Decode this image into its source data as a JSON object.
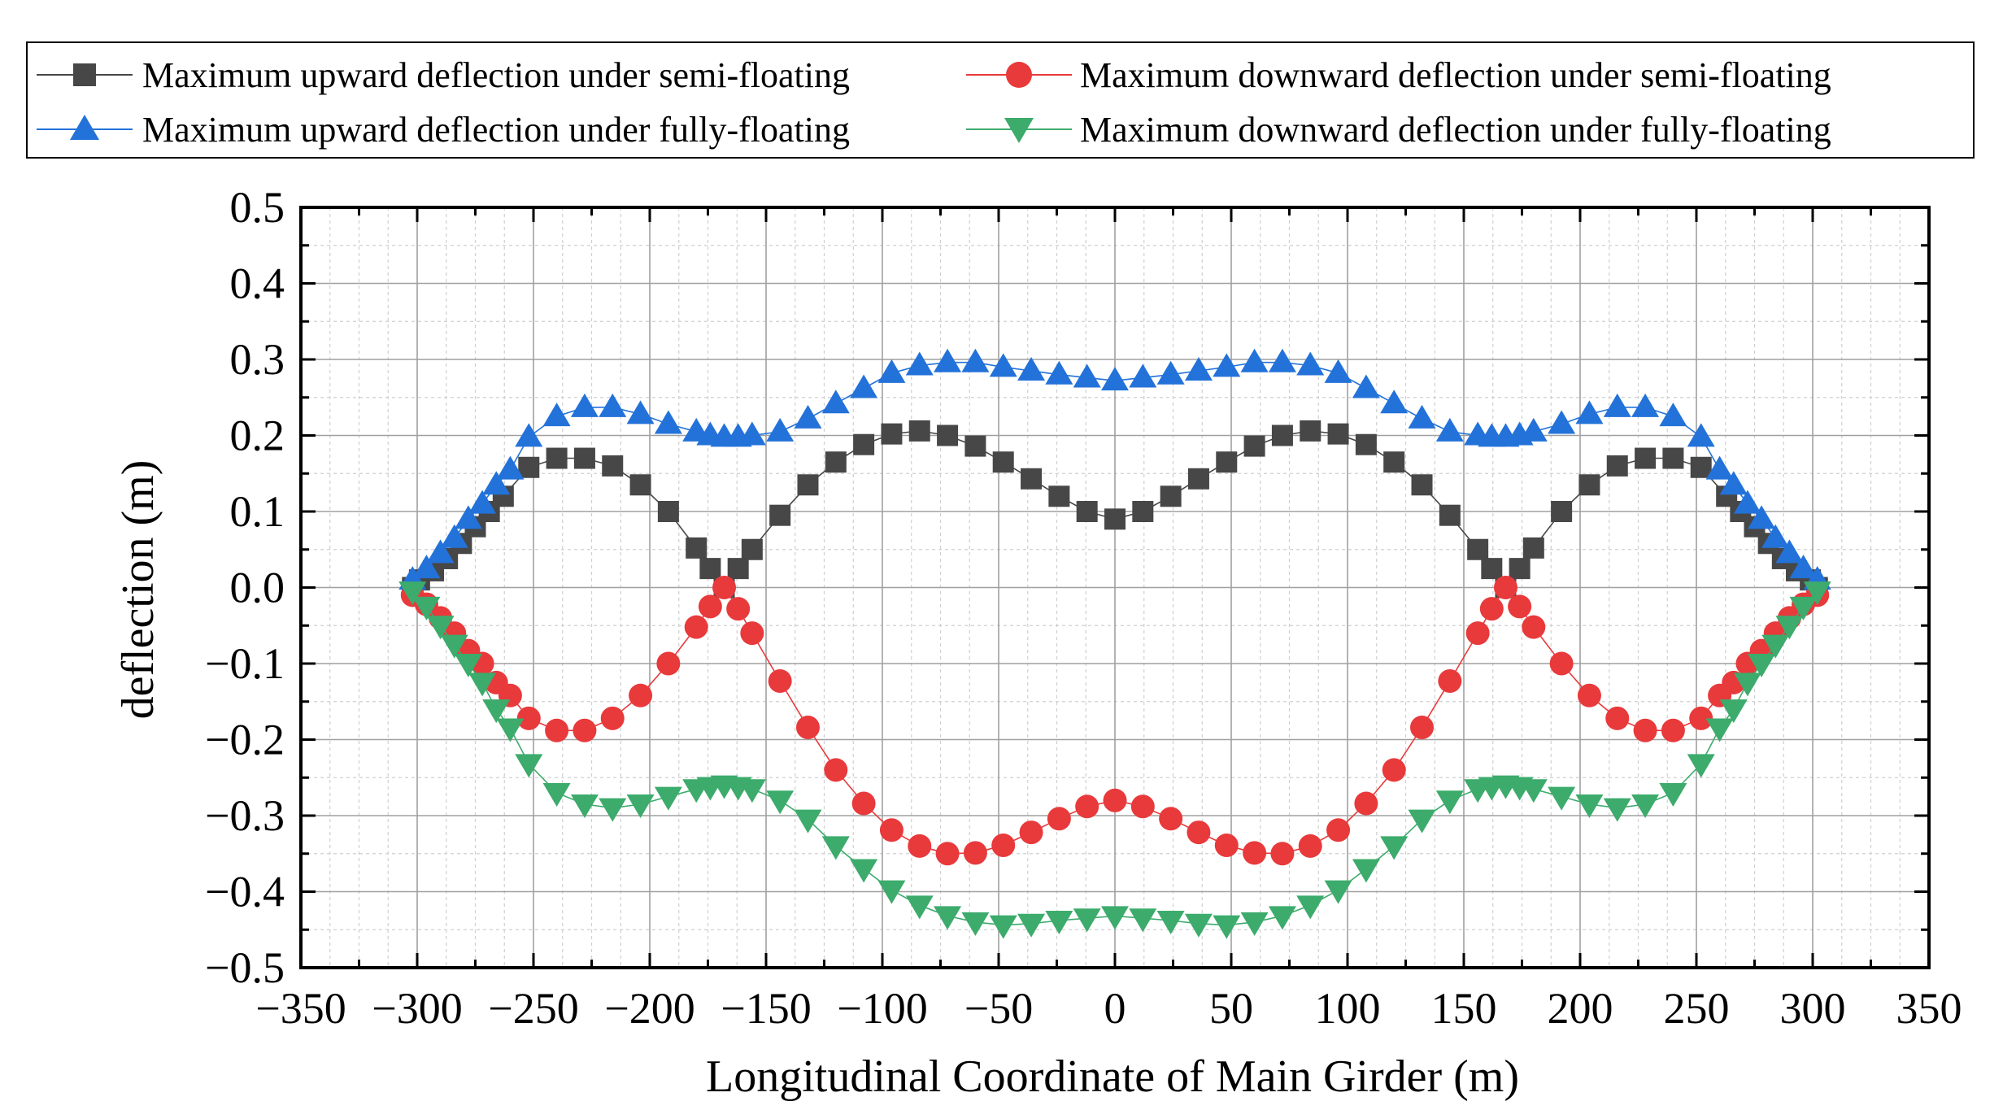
{
  "chart_data": {
    "type": "scatter",
    "xlabel": "Longitudinal Coordinate of Main Girder (m)",
    "ylabel": "deflection (m)",
    "xlim": [
      -350,
      350
    ],
    "ylim": [
      -0.5,
      0.5
    ],
    "xticks": [
      -350,
      -300,
      -250,
      -200,
      -150,
      -100,
      -50,
      0,
      50,
      100,
      150,
      200,
      250,
      300,
      350
    ],
    "yticks": [
      0.5,
      0.4,
      0.3,
      0.2,
      0.1,
      0.0,
      -0.1,
      -0.2,
      -0.3,
      -0.4,
      -0.5
    ],
    "xtick_labels": [
      "−350",
      "−300",
      "−250",
      "−200",
      "−150",
      "−100",
      "−50",
      "0",
      "50",
      "100",
      "150",
      "200",
      "250",
      "300",
      "350"
    ],
    "ytick_labels": [
      "0.5",
      "0.4",
      "0.3",
      "0.2",
      "0.1",
      "0.0",
      "−0.1",
      "−0.2",
      "−0.3",
      "−0.4",
      "−0.5"
    ],
    "grid": true,
    "legend_position": "top",
    "series": [
      {
        "name": "Maximum upward deflection under semi-floating",
        "color": "#474747",
        "marker": "square",
        "points": [
          [
            -302,
            0.0
          ],
          [
            -299,
            0.01
          ],
          [
            -293,
            0.022
          ],
          [
            -287,
            0.038
          ],
          [
            -281,
            0.058
          ],
          [
            -275,
            0.08
          ],
          [
            -269,
            0.1
          ],
          [
            -263,
            0.12
          ],
          [
            -252,
            0.158
          ],
          [
            -240,
            0.17
          ],
          [
            -228,
            0.17
          ],
          [
            -216,
            0.16
          ],
          [
            -204,
            0.135
          ],
          [
            -192,
            0.1
          ],
          [
            -180,
            0.052
          ],
          [
            -174,
            0.025
          ],
          [
            -168,
            0.0
          ],
          [
            -162,
            0.025
          ],
          [
            -156,
            0.05
          ],
          [
            -144,
            0.095
          ],
          [
            -132,
            0.135
          ],
          [
            -120,
            0.165
          ],
          [
            -108,
            0.188
          ],
          [
            -96,
            0.202
          ],
          [
            -84,
            0.206
          ],
          [
            -72,
            0.2
          ],
          [
            -60,
            0.186
          ],
          [
            -48,
            0.165
          ],
          [
            -36,
            0.143
          ],
          [
            -24,
            0.12
          ],
          [
            -12,
            0.1
          ],
          [
            0,
            0.09
          ],
          [
            12,
            0.1
          ],
          [
            24,
            0.12
          ],
          [
            36,
            0.143
          ],
          [
            48,
            0.165
          ],
          [
            60,
            0.186
          ],
          [
            72,
            0.2
          ],
          [
            84,
            0.206
          ],
          [
            96,
            0.202
          ],
          [
            108,
            0.188
          ],
          [
            120,
            0.165
          ],
          [
            132,
            0.135
          ],
          [
            144,
            0.095
          ],
          [
            156,
            0.05
          ],
          [
            162,
            0.025
          ],
          [
            168,
            0.0
          ],
          [
            174,
            0.025
          ],
          [
            180,
            0.052
          ],
          [
            192,
            0.1
          ],
          [
            204,
            0.135
          ],
          [
            216,
            0.16
          ],
          [
            228,
            0.17
          ],
          [
            240,
            0.17
          ],
          [
            252,
            0.158
          ],
          [
            263,
            0.12
          ],
          [
            269,
            0.1
          ],
          [
            275,
            0.08
          ],
          [
            281,
            0.058
          ],
          [
            287,
            0.038
          ],
          [
            293,
            0.022
          ],
          [
            299,
            0.01
          ],
          [
            302,
            0.0
          ]
        ]
      },
      {
        "name": "Maximum downward deflection under semi-floating",
        "color": "#e8393b",
        "marker": "circle",
        "points": [
          [
            -302,
            -0.01
          ],
          [
            -296,
            -0.022
          ],
          [
            -290,
            -0.04
          ],
          [
            -284,
            -0.06
          ],
          [
            -278,
            -0.083
          ],
          [
            -272,
            -0.1
          ],
          [
            -266,
            -0.125
          ],
          [
            -260,
            -0.142
          ],
          [
            -252,
            -0.172
          ],
          [
            -240,
            -0.188
          ],
          [
            -228,
            -0.188
          ],
          [
            -216,
            -0.172
          ],
          [
            -204,
            -0.142
          ],
          [
            -192,
            -0.1
          ],
          [
            -180,
            -0.052
          ],
          [
            -174,
            -0.025
          ],
          [
            -168,
            0.0
          ],
          [
            -162,
            -0.028
          ],
          [
            -156,
            -0.06
          ],
          [
            -144,
            -0.123
          ],
          [
            -132,
            -0.184
          ],
          [
            -120,
            -0.24
          ],
          [
            -108,
            -0.284
          ],
          [
            -96,
            -0.319
          ],
          [
            -84,
            -0.34
          ],
          [
            -72,
            -0.35
          ],
          [
            -60,
            -0.349
          ],
          [
            -48,
            -0.339
          ],
          [
            -36,
            -0.322
          ],
          [
            -24,
            -0.304
          ],
          [
            -12,
            -0.288
          ],
          [
            0,
            -0.28
          ],
          [
            12,
            -0.288
          ],
          [
            24,
            -0.304
          ],
          [
            36,
            -0.322
          ],
          [
            48,
            -0.339
          ],
          [
            60,
            -0.349
          ],
          [
            72,
            -0.35
          ],
          [
            84,
            -0.34
          ],
          [
            96,
            -0.319
          ],
          [
            108,
            -0.284
          ],
          [
            120,
            -0.24
          ],
          [
            132,
            -0.184
          ],
          [
            144,
            -0.123
          ],
          [
            156,
            -0.06
          ],
          [
            162,
            -0.028
          ],
          [
            168,
            0.0
          ],
          [
            174,
            -0.025
          ],
          [
            180,
            -0.052
          ],
          [
            192,
            -0.1
          ],
          [
            204,
            -0.142
          ],
          [
            216,
            -0.172
          ],
          [
            228,
            -0.188
          ],
          [
            240,
            -0.188
          ],
          [
            252,
            -0.172
          ],
          [
            260,
            -0.142
          ],
          [
            266,
            -0.125
          ],
          [
            272,
            -0.1
          ],
          [
            278,
            -0.083
          ],
          [
            284,
            -0.06
          ],
          [
            290,
            -0.04
          ],
          [
            296,
            -0.022
          ],
          [
            302,
            -0.01
          ]
        ]
      },
      {
        "name": "Maximum upward deflection under fully-floating",
        "color": "#2372d9",
        "marker": "triangle-up",
        "points": [
          [
            -302,
            0.01
          ],
          [
            -296,
            0.025
          ],
          [
            -290,
            0.045
          ],
          [
            -284,
            0.065
          ],
          [
            -278,
            0.09
          ],
          [
            -272,
            0.11
          ],
          [
            -266,
            0.135
          ],
          [
            -260,
            0.155
          ],
          [
            -252,
            0.198
          ],
          [
            -240,
            0.225
          ],
          [
            -228,
            0.237
          ],
          [
            -216,
            0.237
          ],
          [
            -204,
            0.228
          ],
          [
            -192,
            0.215
          ],
          [
            -180,
            0.205
          ],
          [
            -174,
            0.2
          ],
          [
            -168,
            0.198
          ],
          [
            -162,
            0.198
          ],
          [
            -156,
            0.2
          ],
          [
            -144,
            0.205
          ],
          [
            -132,
            0.222
          ],
          [
            -120,
            0.242
          ],
          [
            -108,
            0.262
          ],
          [
            -96,
            0.282
          ],
          [
            -84,
            0.292
          ],
          [
            -72,
            0.296
          ],
          [
            -60,
            0.296
          ],
          [
            -48,
            0.29
          ],
          [
            -36,
            0.285
          ],
          [
            -24,
            0.28
          ],
          [
            -12,
            0.276
          ],
          [
            0,
            0.272
          ],
          [
            12,
            0.276
          ],
          [
            24,
            0.28
          ],
          [
            36,
            0.285
          ],
          [
            48,
            0.29
          ],
          [
            60,
            0.296
          ],
          [
            72,
            0.296
          ],
          [
            84,
            0.292
          ],
          [
            96,
            0.282
          ],
          [
            108,
            0.262
          ],
          [
            120,
            0.242
          ],
          [
            132,
            0.222
          ],
          [
            144,
            0.205
          ],
          [
            156,
            0.2
          ],
          [
            162,
            0.198
          ],
          [
            168,
            0.198
          ],
          [
            174,
            0.2
          ],
          [
            180,
            0.205
          ],
          [
            192,
            0.215
          ],
          [
            204,
            0.228
          ],
          [
            216,
            0.237
          ],
          [
            228,
            0.237
          ],
          [
            240,
            0.225
          ],
          [
            252,
            0.198
          ],
          [
            260,
            0.155
          ],
          [
            266,
            0.135
          ],
          [
            272,
            0.11
          ],
          [
            278,
            0.09
          ],
          [
            284,
            0.065
          ],
          [
            290,
            0.045
          ],
          [
            296,
            0.025
          ],
          [
            302,
            0.01
          ]
        ]
      },
      {
        "name": "Maximum downward deflection under fully-floating",
        "color": "#3cab6c",
        "marker": "triangle-down",
        "points": [
          [
            -302,
            -0.005
          ],
          [
            -296,
            -0.025
          ],
          [
            -290,
            -0.05
          ],
          [
            -284,
            -0.075
          ],
          [
            -278,
            -0.1
          ],
          [
            -272,
            -0.125
          ],
          [
            -266,
            -0.16
          ],
          [
            -260,
            -0.185
          ],
          [
            -252,
            -0.232
          ],
          [
            -240,
            -0.27
          ],
          [
            -228,
            -0.285
          ],
          [
            -216,
            -0.29
          ],
          [
            -204,
            -0.285
          ],
          [
            -192,
            -0.275
          ],
          [
            -180,
            -0.265
          ],
          [
            -174,
            -0.262
          ],
          [
            -168,
            -0.26
          ],
          [
            -162,
            -0.262
          ],
          [
            -156,
            -0.265
          ],
          [
            -144,
            -0.28
          ],
          [
            -132,
            -0.305
          ],
          [
            -120,
            -0.34
          ],
          [
            -108,
            -0.37
          ],
          [
            -96,
            -0.398
          ],
          [
            -84,
            -0.418
          ],
          [
            -72,
            -0.432
          ],
          [
            -60,
            -0.44
          ],
          [
            -48,
            -0.444
          ],
          [
            -36,
            -0.442
          ],
          [
            -24,
            -0.438
          ],
          [
            -12,
            -0.435
          ],
          [
            0,
            -0.432
          ],
          [
            12,
            -0.435
          ],
          [
            24,
            -0.438
          ],
          [
            36,
            -0.442
          ],
          [
            48,
            -0.444
          ],
          [
            60,
            -0.44
          ],
          [
            72,
            -0.432
          ],
          [
            84,
            -0.418
          ],
          [
            96,
            -0.398
          ],
          [
            108,
            -0.37
          ],
          [
            120,
            -0.34
          ],
          [
            132,
            -0.305
          ],
          [
            144,
            -0.28
          ],
          [
            156,
            -0.265
          ],
          [
            162,
            -0.262
          ],
          [
            168,
            -0.26
          ],
          [
            174,
            -0.262
          ],
          [
            180,
            -0.265
          ],
          [
            192,
            -0.275
          ],
          [
            204,
            -0.285
          ],
          [
            216,
            -0.29
          ],
          [
            228,
            -0.285
          ],
          [
            240,
            -0.27
          ],
          [
            252,
            -0.232
          ],
          [
            260,
            -0.185
          ],
          [
            266,
            -0.16
          ],
          [
            272,
            -0.125
          ],
          [
            278,
            -0.1
          ],
          [
            284,
            -0.075
          ],
          [
            290,
            -0.05
          ],
          [
            296,
            -0.025
          ],
          [
            302,
            -0.005
          ]
        ]
      }
    ]
  }
}
